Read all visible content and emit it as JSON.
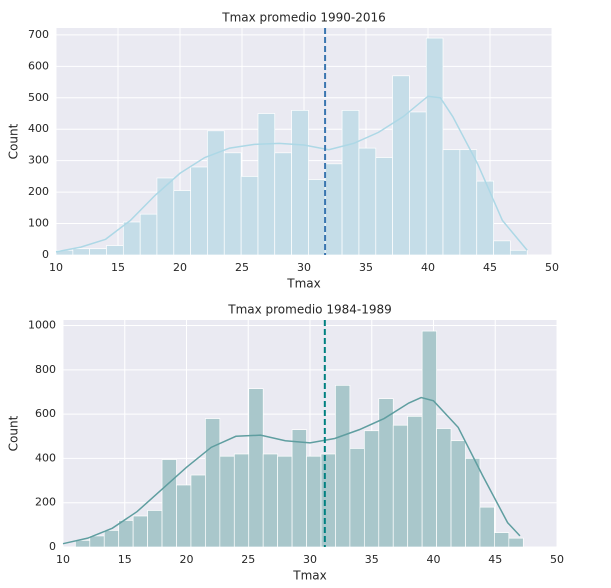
{
  "chart_data": [
    {
      "type": "histogram",
      "title": "Tmax promedio 1990-2016",
      "x_label": "Tmax",
      "y_label": "Count",
      "bins": [
        10,
        11.36,
        12.71,
        14.07,
        15.43,
        16.79,
        18.14,
        19.5,
        20.86,
        22.21,
        23.57,
        24.93,
        26.29,
        27.64,
        29,
        30.36,
        31.71,
        33.07,
        34.43,
        35.79,
        37.14,
        38.5,
        39.86,
        41.21,
        42.57,
        43.93,
        45.29,
        46.64,
        48
      ],
      "counts": [
        15,
        20,
        20,
        30,
        105,
        130,
        245,
        205,
        280,
        395,
        325,
        250,
        450,
        325,
        460,
        240,
        290,
        460,
        340,
        310,
        570,
        455,
        690,
        335,
        335,
        235,
        45,
        15
      ],
      "color": "#c5dde8",
      "kde": {
        "x": [
          10,
          12,
          14,
          16,
          18,
          20,
          22,
          24,
          26,
          28,
          30,
          32,
          34,
          36,
          38,
          40,
          41,
          42,
          44,
          46,
          48
        ],
        "values": [
          10,
          25,
          50,
          110,
          190,
          260,
          310,
          340,
          352,
          355,
          350,
          335,
          355,
          390,
          440,
          505,
          500,
          440,
          290,
          110,
          15
        ],
        "color": "#add8e6"
      },
      "mean_line": {
        "value": 31.7,
        "color": "#3a76b0"
      },
      "xlim": [
        10,
        50
      ],
      "xticks": [
        10,
        15,
        20,
        25,
        30,
        35,
        40,
        45,
        50
      ],
      "ylim": [
        0,
        722
      ],
      "yticks": [
        0,
        100,
        200,
        300,
        400,
        500,
        600,
        700
      ],
      "grid": true
    },
    {
      "type": "histogram",
      "title": "Tmax promedio 1984-1989",
      "x_label": "Tmax",
      "y_label": "Count",
      "bins": [
        11,
        12.17,
        13.34,
        14.51,
        15.68,
        16.85,
        18.02,
        19.19,
        20.36,
        21.53,
        22.7,
        23.87,
        25.04,
        26.21,
        27.38,
        28.55,
        29.72,
        30.89,
        32.06,
        33.23,
        34.4,
        35.57,
        36.74,
        37.91,
        39.08,
        40.25,
        41.42,
        42.59,
        43.76,
        44.93,
        46.1,
        47.27
      ],
      "counts": [
        30,
        50,
        75,
        120,
        140,
        165,
        395,
        280,
        325,
        580,
        410,
        420,
        715,
        420,
        410,
        530,
        410,
        420,
        730,
        445,
        525,
        670,
        550,
        590,
        975,
        535,
        480,
        400,
        180,
        65,
        40
      ],
      "color": "#a9c7cb",
      "kde": {
        "x": [
          10,
          12,
          14,
          16,
          18,
          20,
          22,
          24,
          26,
          28,
          30,
          32,
          34,
          36,
          38,
          39,
          40,
          42,
          44,
          46,
          47
        ],
        "values": [
          15,
          40,
          85,
          160,
          260,
          360,
          450,
          500,
          505,
          480,
          470,
          490,
          530,
          580,
          650,
          675,
          660,
          540,
          320,
          110,
          50
        ],
        "color": "#5f9ea0"
      },
      "mean_line": {
        "value": 31.2,
        "color": "#008080"
      },
      "xlim": [
        10,
        50
      ],
      "xticks": [
        10,
        15,
        20,
        25,
        30,
        35,
        40,
        45,
        50
      ],
      "ylim": [
        0,
        1025
      ],
      "yticks": [
        0,
        200,
        400,
        600,
        800,
        1000
      ],
      "grid": true
    }
  ]
}
